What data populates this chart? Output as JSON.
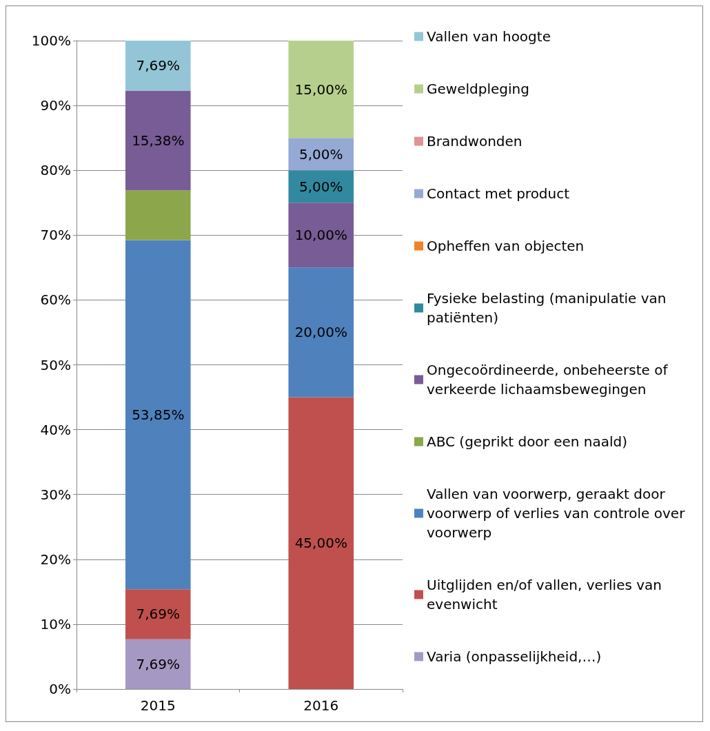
{
  "chart_data": {
    "type": "bar",
    "stacked": true,
    "categories": [
      "2015",
      "2016"
    ],
    "ylim": [
      0,
      100
    ],
    "yticks": [
      {
        "value": 0,
        "label": "0%"
      },
      {
        "value": 10,
        "label": "10%"
      },
      {
        "value": 20,
        "label": "20%"
      },
      {
        "value": 30,
        "label": "30%"
      },
      {
        "value": 40,
        "label": "40%"
      },
      {
        "value": 50,
        "label": "50%"
      },
      {
        "value": 60,
        "label": "60%"
      },
      {
        "value": 70,
        "label": "70%"
      },
      {
        "value": 80,
        "label": "80%"
      },
      {
        "value": 90,
        "label": "90%"
      },
      {
        "value": 100,
        "label": "100%"
      }
    ],
    "grid": "y",
    "legend": "right",
    "series": [
      {
        "name": "Varia (onpasselijkheid,…)",
        "color": "#a599c3",
        "values": [
          7.69,
          null
        ],
        "value_labels": [
          "7,69%",
          null
        ]
      },
      {
        "name": "Uitglijden en/of vallen, verlies van evenwicht",
        "color": "#c0504d",
        "values": [
          7.69,
          45
        ],
        "value_labels": [
          "7,69%",
          "45,00%"
        ]
      },
      {
        "name": "Vallen van voorwerp, geraakt door voorwerp of verlies van controle over voorwerp",
        "color": "#4f81bd",
        "values": [
          53.85,
          20
        ],
        "value_labels": [
          "53,85%",
          "20,00%"
        ]
      },
      {
        "name": "ABC (geprikt door een naald)",
        "color": "#8ba64b",
        "values": [
          7.69,
          null
        ],
        "value_labels": [
          null,
          null
        ]
      },
      {
        "name": "Ongecoördineerde, onbeheerste of verkeerde lichaamsbewegingen",
        "color": "#775c95",
        "values": [
          15.38,
          10
        ],
        "value_labels": [
          "15,38%",
          "10,00%"
        ]
      },
      {
        "name": "Fysieke belasting (manipulatie van patiënten)",
        "color": "#31899f",
        "values": [
          null,
          5
        ],
        "value_labels": [
          null,
          "5,00%"
        ]
      },
      {
        "name": "Opheffen van objecten",
        "color": "#f08326",
        "values": [
          null,
          null
        ],
        "value_labels": [
          null,
          null
        ]
      },
      {
        "name": "Contact met product",
        "color": "#95a9d4",
        "values": [
          null,
          5
        ],
        "value_labels": [
          null,
          "5,00%"
        ]
      },
      {
        "name": "Brandwonden",
        "color": "#d99694",
        "values": [
          null,
          null
        ],
        "value_labels": [
          null,
          null
        ]
      },
      {
        "name": "Geweldpleging",
        "color": "#b7cf8d",
        "values": [
          null,
          15
        ],
        "value_labels": [
          null,
          "15,00%"
        ]
      },
      {
        "name": "Vallen van hoogte",
        "color": "#93c5d6",
        "values": [
          7.69,
          null
        ],
        "value_labels": [
          "7,69%",
          null
        ]
      }
    ]
  }
}
